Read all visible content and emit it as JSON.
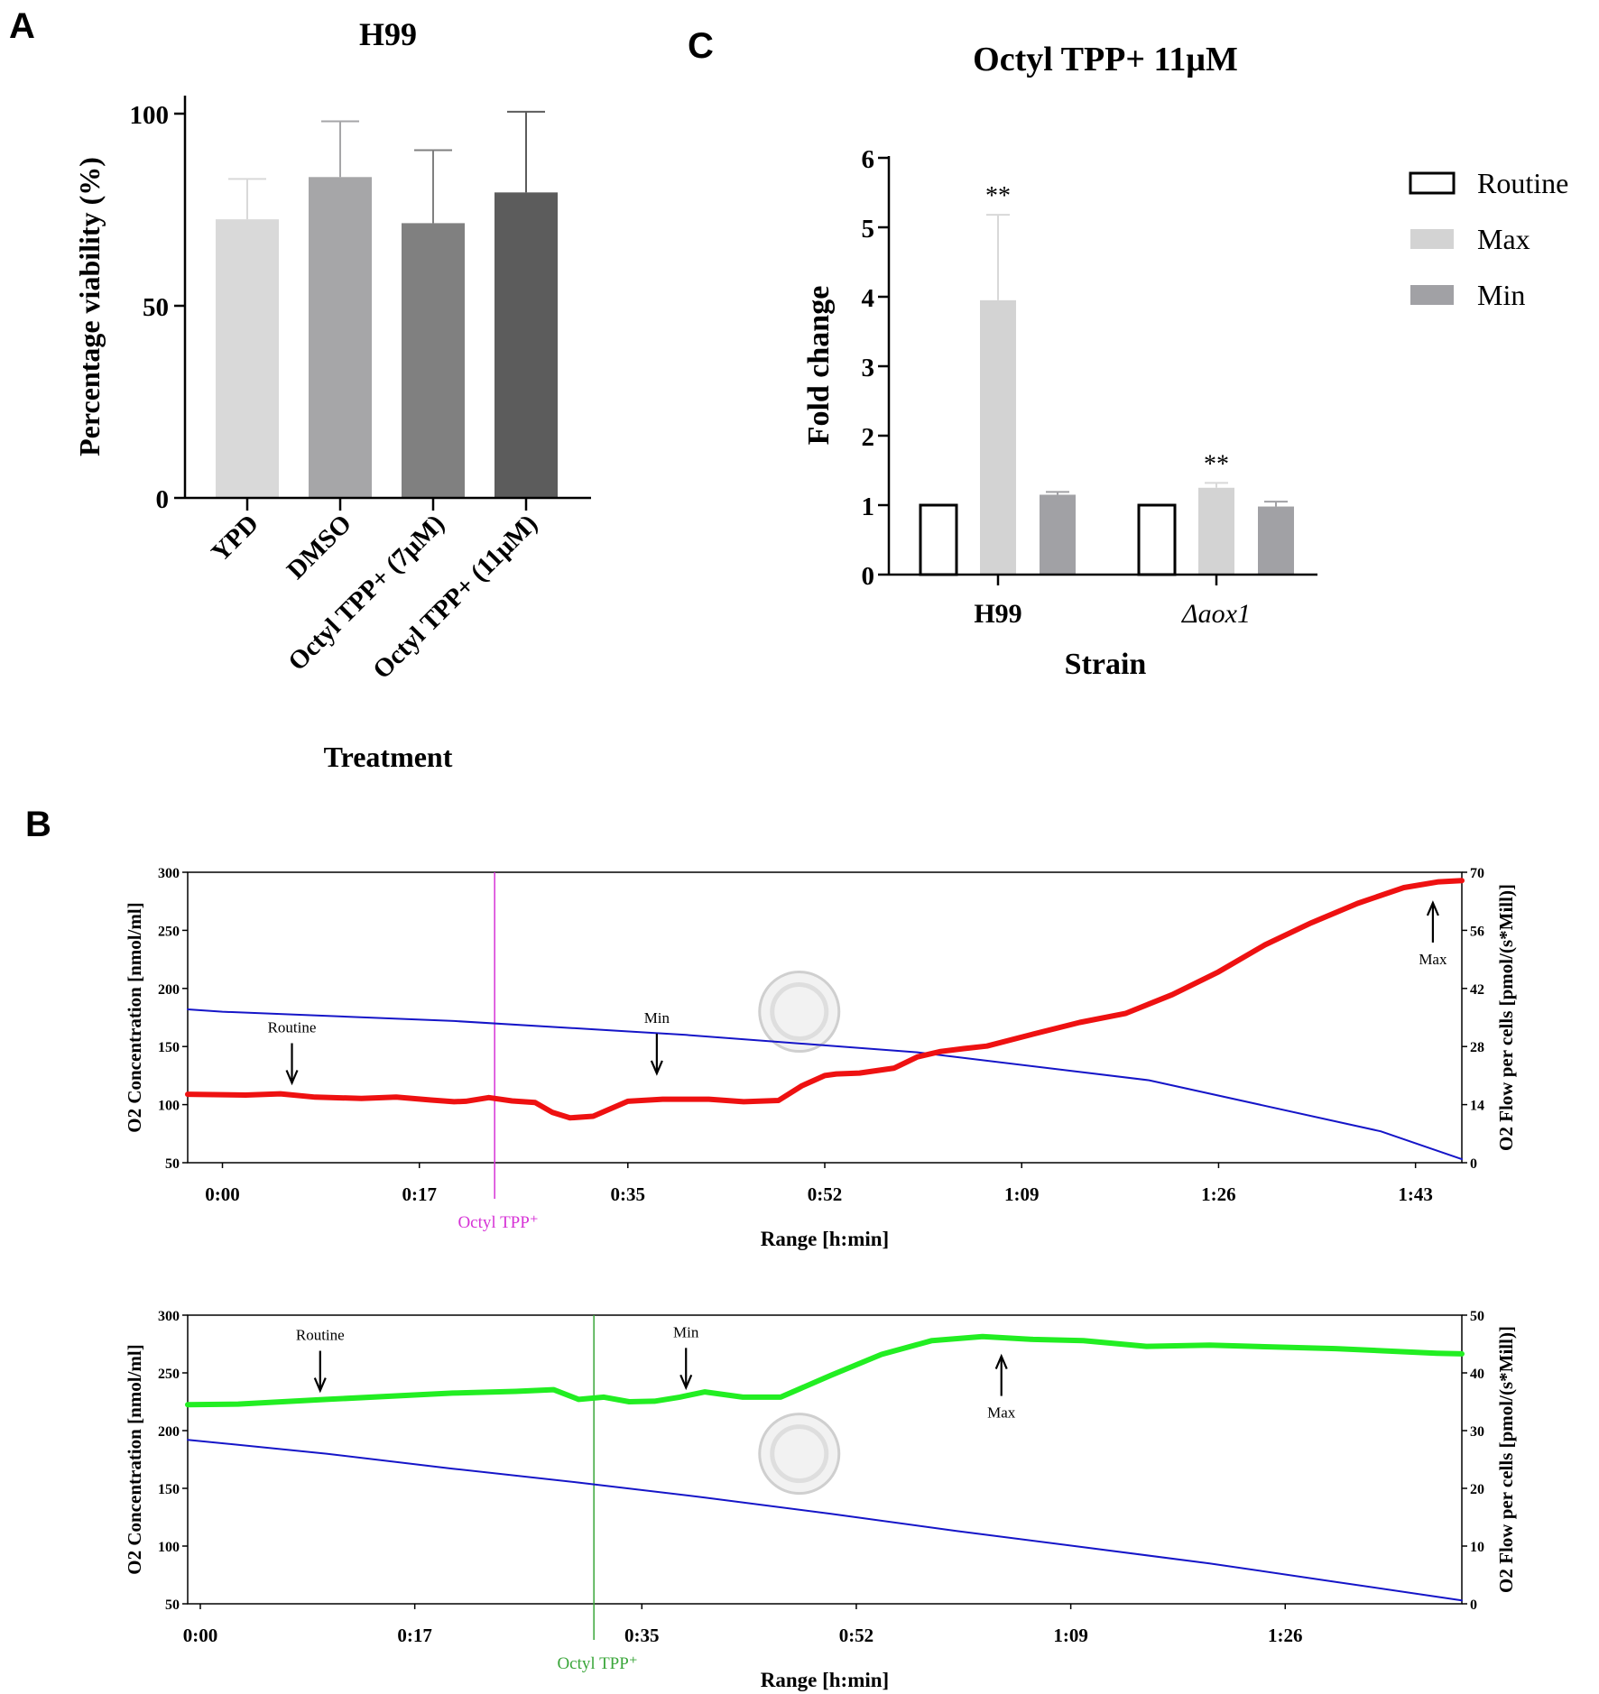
{
  "labels": {
    "panel_a": "A",
    "panel_b": "B",
    "panel_c": "C"
  },
  "chart_data": [
    {
      "id": "A",
      "type": "bar",
      "title": "H99",
      "xlabel": "Treatment",
      "ylabel": "Percentage viability (%)",
      "ylim": [
        0,
        100
      ],
      "yticks": [
        0,
        50,
        100
      ],
      "categories": [
        "YPD",
        "DMSO",
        "Octyl TPP+ (7μM)",
        "Octyl TPP+ (11μM)"
      ],
      "values": [
        72.5,
        83.5,
        71.5,
        79.5
      ],
      "errors": [
        10.5,
        14.5,
        19,
        21
      ],
      "colors": [
        "#d9d9d9",
        "#a6a6a8",
        "#808080",
        "#5c5c5c"
      ]
    },
    {
      "id": "C",
      "type": "bar",
      "title": "Octyl TPP+ 11μM",
      "xlabel": "Strain",
      "ylabel": "Fold change",
      "ylim": [
        0,
        6
      ],
      "yticks": [
        0,
        1,
        2,
        3,
        4,
        5,
        6
      ],
      "categories": [
        "H99",
        "Δaox1"
      ],
      "series": [
        {
          "name": "Routine",
          "values": [
            1,
            1
          ],
          "errors": [
            0,
            0
          ],
          "color": "#ffffff"
        },
        {
          "name": "Max",
          "values": [
            3.95,
            1.25
          ],
          "errors": [
            1.23,
            0.07
          ],
          "color": "#d3d3d3"
        },
        {
          "name": "Min",
          "values": [
            1.15,
            0.98
          ],
          "errors": [
            0.04,
            0.07
          ],
          "color": "#a1a1a5"
        }
      ],
      "annotations": [
        {
          "text": "**",
          "category": "H99",
          "series": "Max"
        },
        {
          "text": "**",
          "category": "Δaox1",
          "series": "Max"
        }
      ],
      "legend": "right"
    },
    {
      "id": "B-top",
      "type": "line",
      "xlabel": "Range [h:min]",
      "ylabel_left": "O2 Concentration [nmol/ml]",
      "ylabel_right": "O2 Flow per cells [pmol/(s*Mill)]",
      "xlim": [
        -3,
        107
      ],
      "ylim_left": [
        50,
        300
      ],
      "ylim_right": [
        0,
        70
      ],
      "x_tick_values": [
        0,
        17,
        35,
        52,
        69,
        86,
        103
      ],
      "x_tick_labels": [
        "0:00",
        "0:17",
        "0:35",
        "0:52",
        "1:09",
        "1:26",
        "1:43"
      ],
      "yticks_left": [
        50,
        100,
        150,
        200,
        250,
        300
      ],
      "yticks_right": [
        0,
        14,
        28,
        42,
        56,
        70
      ],
      "series": [
        {
          "name": "O2 Concentration",
          "axis": "left",
          "color": "#1515c8",
          "x": [
            -3,
            0,
            20,
            40,
            60,
            80,
            100,
            107
          ],
          "y": [
            182,
            180,
            172,
            160,
            145,
            121,
            77,
            53
          ]
        },
        {
          "name": "O2 Flow per cells",
          "axis": "right",
          "color": "#ee1111",
          "x": [
            -3,
            2,
            5,
            8,
            12,
            15,
            18,
            20,
            21,
            23,
            25,
            27,
            28.5,
            30,
            32,
            35,
            38,
            42,
            45,
            48,
            50,
            52,
            53,
            55,
            58,
            60,
            62,
            64,
            66,
            70,
            74,
            78,
            82,
            86,
            90,
            94,
            98,
            102,
            105,
            107
          ],
          "y": [
            16.5,
            16.3,
            16.6,
            15.8,
            15.5,
            15.8,
            15.1,
            14.7,
            14.8,
            15.7,
            14.9,
            14.5,
            12.1,
            10.8,
            11.2,
            14.8,
            15.3,
            15.3,
            14.7,
            15.0,
            18.5,
            21.0,
            21.4,
            21.6,
            22.8,
            25.5,
            26.8,
            27.5,
            28.1,
            31.0,
            33.8,
            36.0,
            40.5,
            46.0,
            52.5,
            57.8,
            62.5,
            66.3,
            67.7,
            68.0
          ]
        }
      ],
      "vline": {
        "x": 23.5,
        "label": "Octyl TPP⁺",
        "color": "#d633d6"
      },
      "annotations": [
        {
          "text": "Routine",
          "x": 6,
          "axis": "right",
          "arrow": "down",
          "at": 17.5
        },
        {
          "text": "Min",
          "x": 37.5,
          "axis": "right",
          "arrow": "down",
          "at": 19.8
        },
        {
          "text": "Max",
          "x": 104.5,
          "axis": "right",
          "arrow": "up",
          "at": 63.5
        }
      ]
    },
    {
      "id": "B-bottom",
      "type": "line",
      "xlabel": "Range [h:min]",
      "ylabel_left": "O2 Concentration [nmol/ml]",
      "ylabel_right": "O2 Flow per cells [pmol/(s*Mill)]",
      "xlim": [
        -1,
        100
      ],
      "ylim_left": [
        50,
        300
      ],
      "ylim_right": [
        0,
        50
      ],
      "x_tick_values": [
        0,
        17,
        35,
        52,
        69,
        86
      ],
      "x_tick_labels": [
        "0:00",
        "0:17",
        "0:35",
        "0:52",
        "1:09",
        "1:26"
      ],
      "yticks_left": [
        50,
        100,
        150,
        200,
        250,
        300
      ],
      "yticks_right": [
        0,
        10,
        20,
        30,
        40,
        50
      ],
      "series": [
        {
          "name": "O2 Concentration",
          "axis": "left",
          "color": "#1515c8",
          "x": [
            -1,
            10,
            20,
            30,
            40,
            50,
            60,
            70,
            80,
            90,
            100
          ],
          "y": [
            192,
            180,
            167,
            155,
            142,
            128,
            113,
            99,
            85,
            69,
            53
          ]
        },
        {
          "name": "O2 Flow per cells",
          "axis": "right",
          "color": "#22ee22",
          "x": [
            -1,
            3,
            10,
            20,
            25,
            28,
            30,
            32,
            34,
            36,
            38,
            40,
            43,
            46,
            50,
            54,
            58,
            62,
            66,
            70,
            75,
            80,
            90,
            98,
            100
          ],
          "y": [
            34.5,
            34.6,
            35.4,
            36.5,
            36.8,
            37.1,
            35.4,
            35.8,
            35.0,
            35.1,
            35.8,
            36.7,
            35.8,
            35.8,
            39.6,
            43.2,
            45.6,
            46.3,
            45.8,
            45.6,
            44.6,
            44.8,
            44.2,
            43.4,
            43.3
          ]
        }
      ],
      "vline": {
        "x": 31.2,
        "label": "Octyl TPP⁺",
        "color": "#3aa63a"
      },
      "annotations": [
        {
          "text": "Routine",
          "x": 9.5,
          "axis": "right",
          "arrow": "down",
          "at": 35.7
        },
        {
          "text": "Min",
          "x": 38.5,
          "axis": "right",
          "arrow": "down",
          "at": 36.2
        },
        {
          "text": "Max",
          "x": 63.5,
          "axis": "right",
          "arrow": "up",
          "at": 43.5
        }
      ]
    }
  ]
}
